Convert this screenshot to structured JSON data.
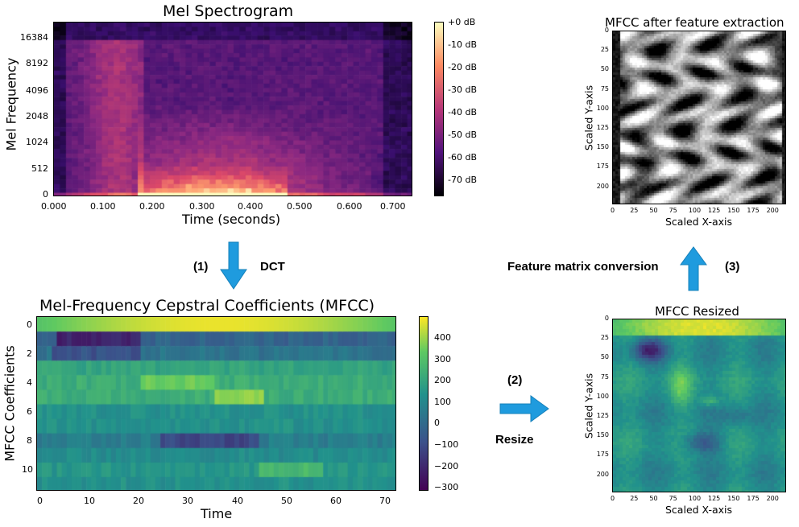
{
  "mel": {
    "title": "Mel Spectrogram",
    "ylabel": "Mel Frequency",
    "xlabel": "Time (seconds)",
    "yticks": [
      "16384",
      "8192",
      "4096",
      "2048",
      "1024",
      "512",
      "0"
    ],
    "xticks": [
      "0.000",
      "0.100",
      "0.200",
      "0.300",
      "0.400",
      "0.500",
      "0.600",
      "0.700"
    ],
    "cbar": [
      "+0 dB",
      "-10 dB",
      "-20 dB",
      "-30 dB",
      "-40 dB",
      "-50 dB",
      "-60 dB",
      "-70 dB"
    ]
  },
  "mfcc": {
    "title": "Mel-Frequency Cepstral Coefficients (MFCC)",
    "ylabel": "MFCC Coefficients",
    "xlabel": "Time",
    "yticks": [
      "0",
      "2",
      "4",
      "6",
      "8",
      "10"
    ],
    "xticks": [
      "0",
      "10",
      "20",
      "30",
      "40",
      "50",
      "60",
      "70"
    ],
    "cbar": [
      "400",
      "300",
      "200",
      "100",
      "0",
      "−100",
      "−200",
      "−300"
    ]
  },
  "feat": {
    "title": "MFCC after feature extraction",
    "ylabel": "Scaled Y-axis",
    "xlabel": "Scaled X-axis",
    "yticks": [
      "0",
      "25",
      "50",
      "75",
      "100",
      "125",
      "150",
      "175",
      "200"
    ],
    "xticks": [
      "0",
      "25",
      "50",
      "75",
      "100",
      "125",
      "150",
      "175",
      "200"
    ]
  },
  "resized": {
    "title": "MFCC Resized",
    "ylabel": "Scaled Y-axis",
    "xlabel": "Scaled X-axis",
    "yticks": [
      "0",
      "25",
      "50",
      "75",
      "100",
      "125",
      "150",
      "175",
      "200"
    ],
    "xticks": [
      "0",
      "25",
      "50",
      "75",
      "100",
      "125",
      "150",
      "175",
      "200"
    ]
  },
  "steps": {
    "s1_num": "(1)",
    "s1_label": "DCT",
    "s2_num": "(2)",
    "s2_label": "Resize",
    "s3_num": "(3)",
    "s3_label": "Feature matrix conversion"
  },
  "colors": {
    "arrow": "#1f9bde"
  }
}
